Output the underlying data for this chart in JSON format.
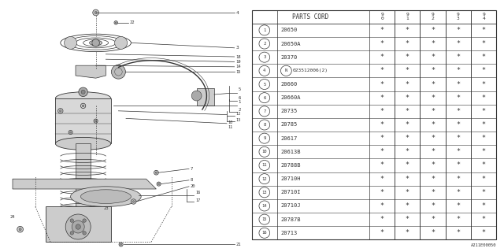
{
  "parts_cord_header": "PARTS CORD",
  "year_cols": [
    "9\n0",
    "9\n1",
    "9\n2",
    "9\n3",
    "9\n4"
  ],
  "parts": [
    {
      "num": "1",
      "code": "20650"
    },
    {
      "num": "2",
      "code": "20650A"
    },
    {
      "num": "3",
      "code": "20370"
    },
    {
      "num": "4",
      "code": "N023512006(2)",
      "special": true
    },
    {
      "num": "5",
      "code": "20660"
    },
    {
      "num": "6",
      "code": "20660A"
    },
    {
      "num": "7",
      "code": "20735"
    },
    {
      "num": "8",
      "code": "20785"
    },
    {
      "num": "9",
      "code": "20617"
    },
    {
      "num": "10",
      "code": "20613B"
    },
    {
      "num": "11",
      "code": "20788B"
    },
    {
      "num": "12",
      "code": "20710H"
    },
    {
      "num": "13",
      "code": "20710I"
    },
    {
      "num": "14",
      "code": "20710J"
    },
    {
      "num": "15",
      "code": "20787B"
    },
    {
      "num": "16",
      "code": "20713"
    }
  ],
  "watermark": "A211E00050",
  "bg_color": "#ffffff",
  "line_color": "#333333"
}
